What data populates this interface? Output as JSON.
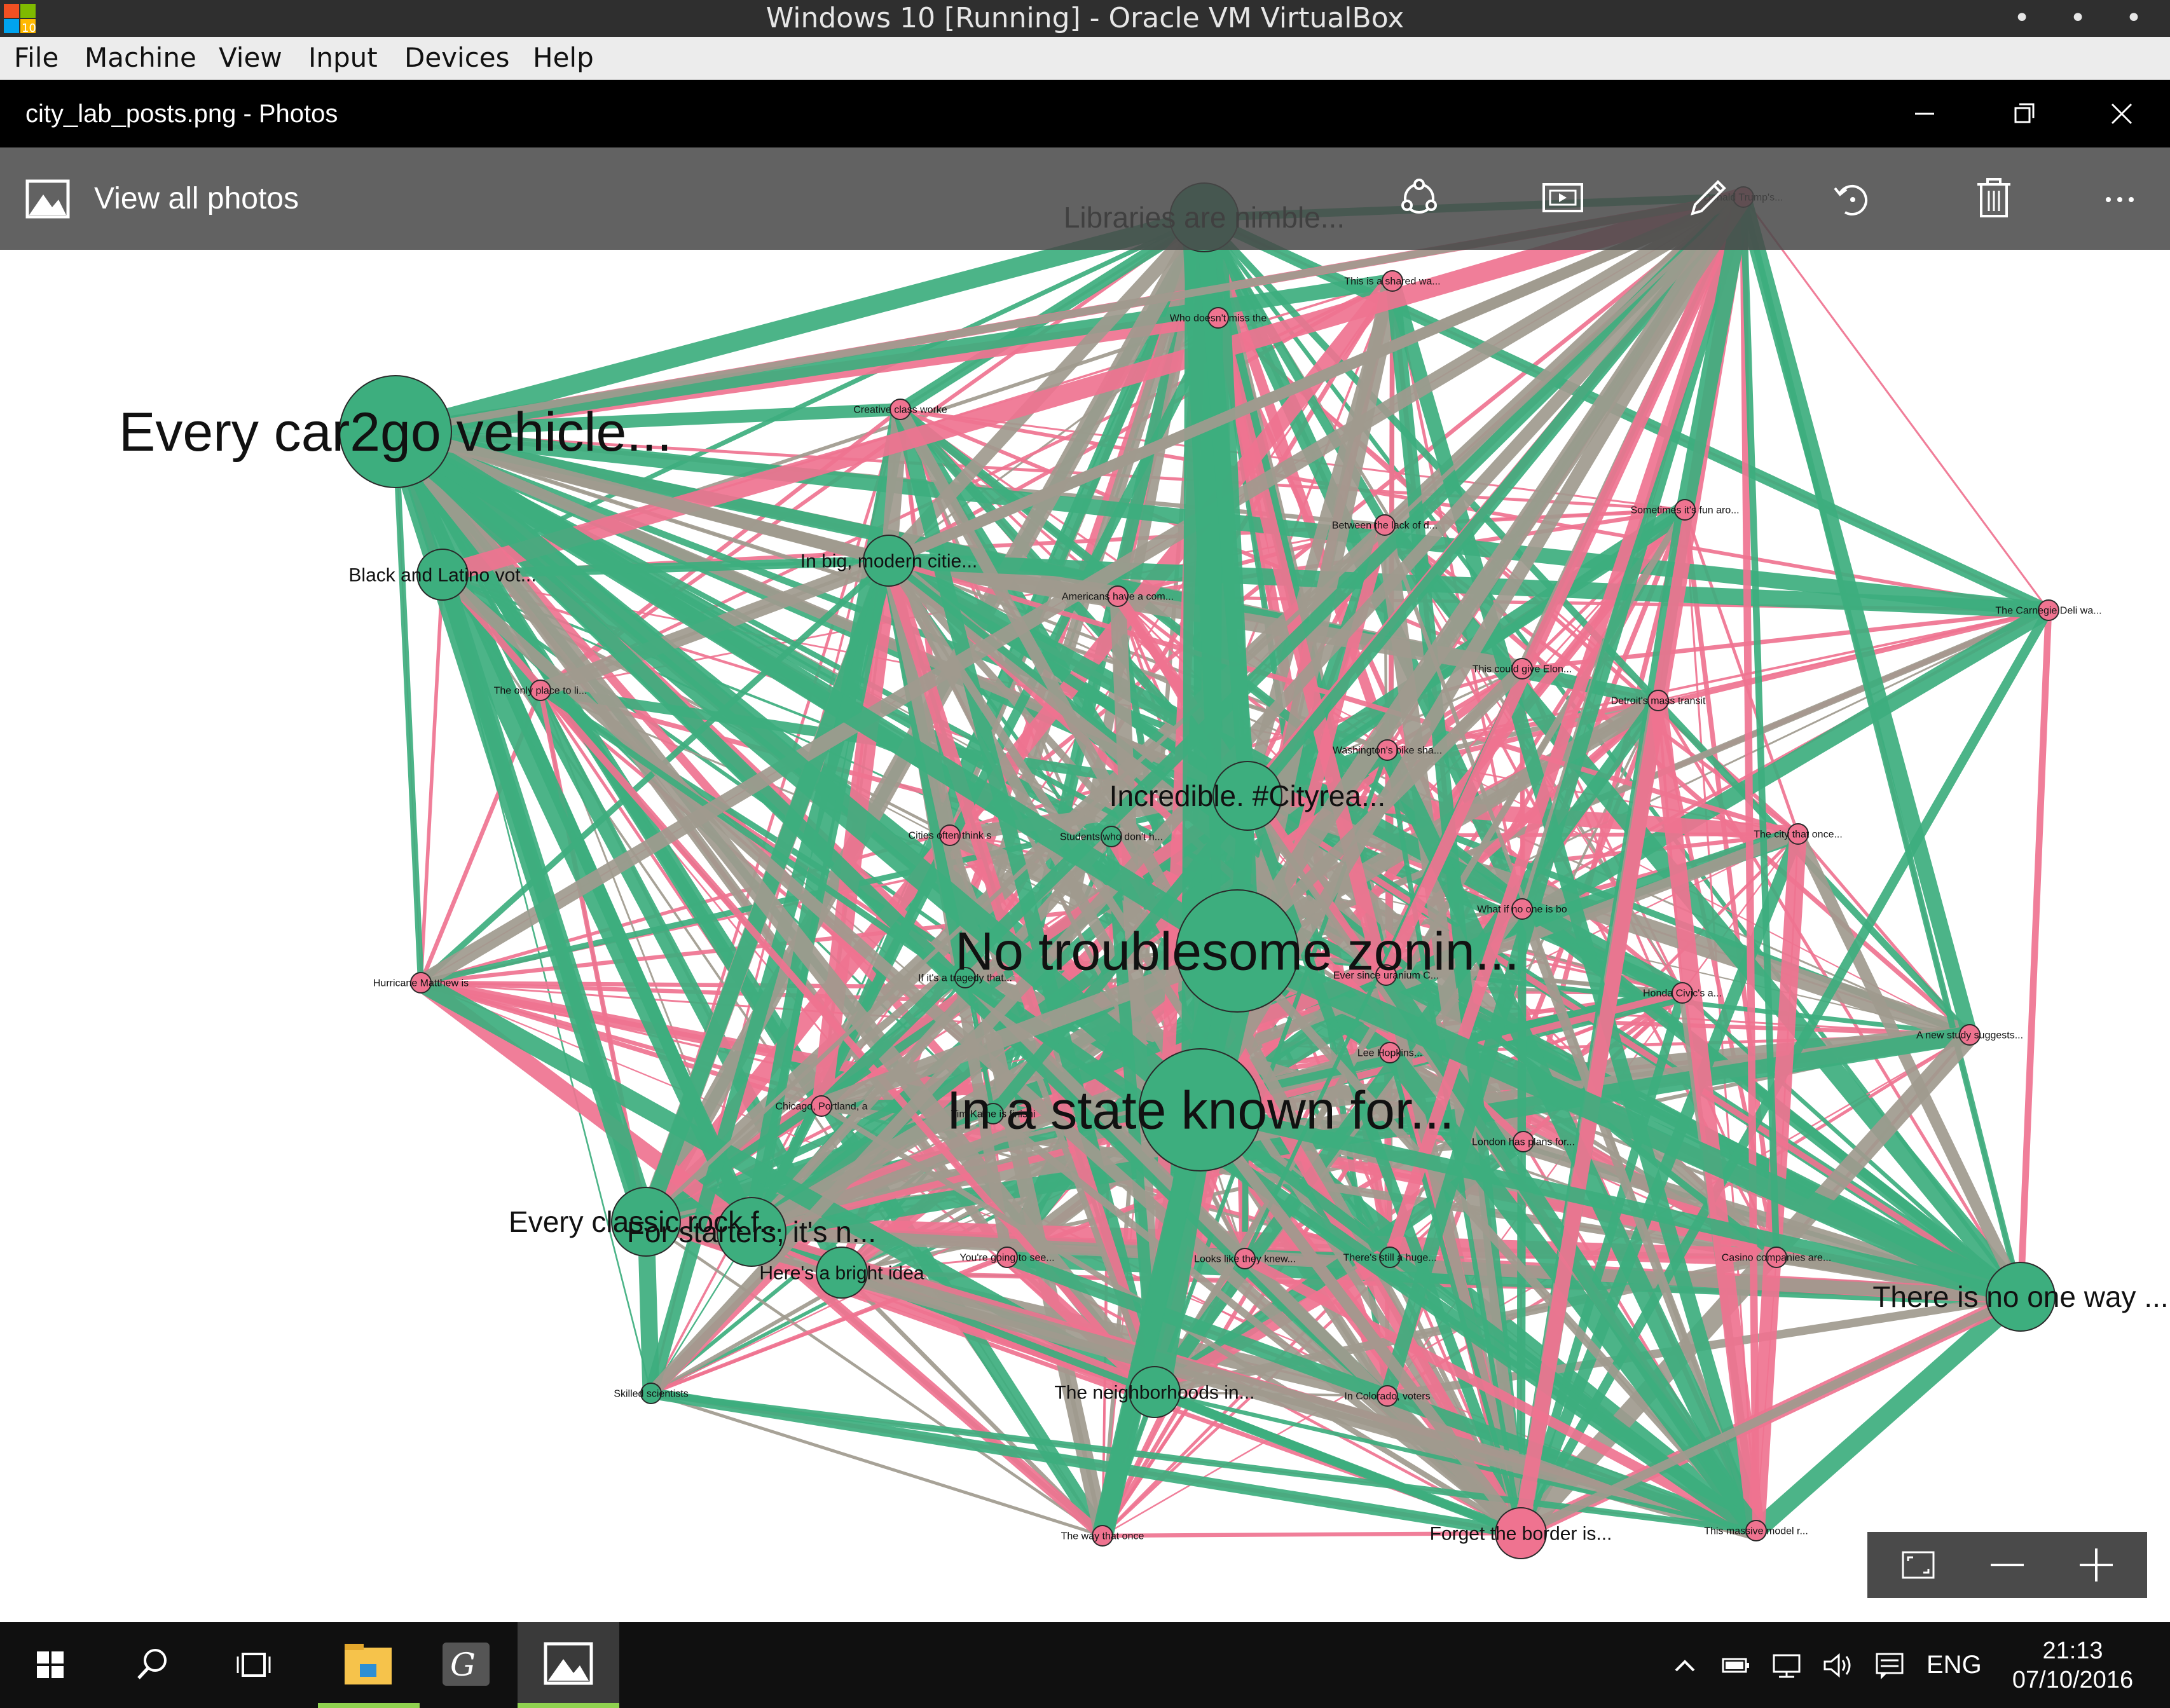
{
  "vbox": {
    "title": "Windows 10 [Running] - Oracle VM VirtualBox",
    "menu": [
      "File",
      "Machine",
      "View",
      "Input",
      "Devices",
      "Help"
    ]
  },
  "photos": {
    "window_title": "city_lab_posts.png - Photos",
    "view_all_label": "View all photos",
    "toolbar_icons": [
      "share-icon",
      "slideshow-icon",
      "edit-pencil-icon",
      "rotate-icon",
      "delete-icon",
      "more-icon"
    ]
  },
  "graph": {
    "colors": {
      "green": "#3dae7e",
      "pink": "#ef7390",
      "gray": "#a09a8e"
    },
    "nodes": [
      {
        "id": "n1",
        "label": "Libraries are nimble...",
        "size": "large",
        "color": "green"
      },
      {
        "id": "n2",
        "label": "Every car2go vehicle...",
        "size": "xlarge",
        "color": "green"
      },
      {
        "id": "n3",
        "label": "Who doesn't miss the",
        "size": "tiny",
        "color": "pink"
      },
      {
        "id": "n4",
        "label": "Creative class worke",
        "size": "tiny",
        "color": "pink"
      },
      {
        "id": "n5",
        "label": "In big, modern citie...",
        "size": "medium",
        "color": "green"
      },
      {
        "id": "n6",
        "label": "Black and Latino vot...",
        "size": "medium",
        "color": "green"
      },
      {
        "id": "n7",
        "label": "Americans have a com...",
        "size": "tiny",
        "color": "pink"
      },
      {
        "id": "n8",
        "label": "This could give Elon...",
        "size": "tiny",
        "color": "pink"
      },
      {
        "id": "n9",
        "label": "The only place to li...",
        "size": "tiny",
        "color": "pink"
      },
      {
        "id": "n10",
        "label": "Incredible. #Cityrea...",
        "size": "large",
        "color": "green"
      },
      {
        "id": "n11",
        "label": "Cities often think s",
        "size": "tiny",
        "color": "pink"
      },
      {
        "id": "n12",
        "label": "Students who don't h...",
        "size": "tiny",
        "color": "green"
      },
      {
        "id": "n13",
        "label": "No troublesome zonin...",
        "size": "xxlarge",
        "color": "green"
      },
      {
        "id": "n14",
        "label": "What if no one is bo",
        "size": "tiny",
        "color": "pink"
      },
      {
        "id": "n15",
        "label": "Hurricane Matthew is",
        "size": "tiny",
        "color": "pink"
      },
      {
        "id": "n16",
        "label": "In a state known for...",
        "size": "xxlarge",
        "color": "green"
      },
      {
        "id": "n17",
        "label": "Chicago, Portland, a",
        "size": "tiny",
        "color": "pink"
      },
      {
        "id": "n18",
        "label": "Tim Kaine is finishi",
        "size": "tiny",
        "color": "green"
      },
      {
        "id": "n19",
        "label": "London has plans for...",
        "size": "tiny",
        "color": "pink"
      },
      {
        "id": "n20",
        "label": "Every classic rock f...",
        "size": "large",
        "color": "green"
      },
      {
        "id": "n21",
        "label": "For starters, it's n...",
        "size": "large",
        "color": "green"
      },
      {
        "id": "n22",
        "label": "Here's a bright idea",
        "size": "medium",
        "color": "green"
      },
      {
        "id": "n23",
        "label": "You're going to see...",
        "size": "tiny",
        "color": "pink"
      },
      {
        "id": "n24",
        "label": "Looks like they knew...",
        "size": "tiny",
        "color": "pink"
      },
      {
        "id": "n25",
        "label": "There is no one way ...",
        "size": "large",
        "color": "green"
      },
      {
        "id": "n26",
        "label": "The neighborhoods in...",
        "size": "medium",
        "color": "green"
      },
      {
        "id": "n27",
        "label": "Skilled scientists",
        "size": "tiny",
        "color": "green"
      },
      {
        "id": "n28",
        "label": "In Colorado, voters",
        "size": "tiny",
        "color": "pink"
      },
      {
        "id": "n29",
        "label": "Forget the border is...",
        "size": "medium",
        "color": "pink"
      },
      {
        "id": "n30",
        "label": "This massive model r...",
        "size": "tiny",
        "color": "pink"
      },
      {
        "id": "n31",
        "label": "The Carnegie Deli wa...",
        "size": "tiny",
        "color": "pink"
      },
      {
        "id": "n32",
        "label": "A new study suggests...",
        "size": "tiny",
        "color": "pink"
      },
      {
        "id": "n33",
        "label": "Donald Trump's...",
        "size": "tiny",
        "color": "pink"
      },
      {
        "id": "n34",
        "label": "Honda Civic's a...",
        "size": "tiny",
        "color": "pink"
      },
      {
        "id": "n35",
        "label": "Ever since uranium C...",
        "size": "tiny",
        "color": "pink"
      },
      {
        "id": "n36",
        "label": "This is a shared wa...",
        "size": "tiny",
        "color": "pink"
      },
      {
        "id": "n37",
        "label": "Between the lack of d...",
        "size": "tiny",
        "color": "pink"
      },
      {
        "id": "n38",
        "label": "Washington's bike sha...",
        "size": "tiny",
        "color": "pink"
      },
      {
        "id": "n39",
        "label": "If it's a tragedy that...",
        "size": "tiny",
        "color": "green"
      },
      {
        "id": "n40",
        "label": "There's still a huge...",
        "size": "tiny",
        "color": "green"
      },
      {
        "id": "n41",
        "label": "Casino companies are...",
        "size": "tiny",
        "color": "pink"
      },
      {
        "id": "n42",
        "label": "Sometimes it's fun aro...",
        "size": "tiny",
        "color": "pink"
      },
      {
        "id": "n43",
        "label": "The city that once...",
        "size": "tiny",
        "color": "pink"
      },
      {
        "id": "n44",
        "label": "Detroit's mass transit",
        "size": "tiny",
        "color": "pink"
      },
      {
        "id": "n45",
        "label": "Lee Hopkins...",
        "size": "tiny",
        "color": "pink"
      },
      {
        "id": "n46",
        "label": "The way that once",
        "size": "tiny",
        "color": "pink"
      }
    ]
  },
  "zoom_controls": [
    "fit-screen-icon",
    "zoom-out-icon",
    "zoom-in-icon"
  ],
  "taskbar": {
    "language": "ENG",
    "time": "21:13",
    "date": "07/10/2016"
  }
}
